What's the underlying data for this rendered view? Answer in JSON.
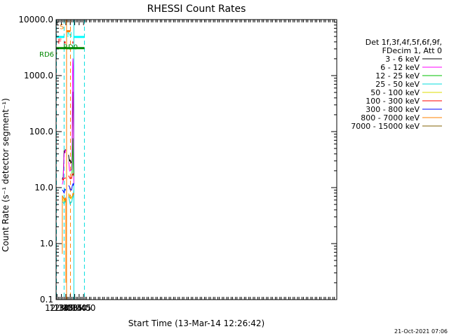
{
  "chart_data": {
    "type": "line",
    "title": "RHESSI Count Rates",
    "xlabel": "Start Time (13-Mar-14 12:26:42)",
    "ylabel": "Count Rate (s⁻¹ detector segment⁻¹)",
    "yscale": "log",
    "ylim": [
      0.1,
      10000
    ],
    "xlim_minutes": [
      12.45,
      28.3
    ],
    "x_tick_labels": [
      "12:30",
      "12:45",
      "13:00",
      "13:15",
      "13:30",
      "13:45",
      "14:00"
    ],
    "y_tick_labels": [
      "0.1",
      "1.0",
      "10.0",
      "100.0",
      "1000.0",
      "10000.0"
    ],
    "legend_header": [
      "Det 1f,3f,4f,5f,6f,9f,",
      "FDecim 1, Att 0"
    ],
    "legend_position": "right",
    "series": [
      {
        "name": "3 - 6 keV",
        "color": "#000000",
        "segments": [
          [
            [
              12.8,
              14
            ],
            [
              12.85,
              16
            ],
            [
              12.9,
              46
            ],
            [
              12.95,
              44
            ],
            [
              13.0,
              46
            ]
          ],
          [
            [
              13.15,
              38
            ],
            [
              13.2,
              30
            ],
            [
              13.25,
              30
            ],
            [
              13.32,
              29
            ],
            [
              13.35,
              33
            ],
            [
              13.38,
              200
            ],
            [
              13.4,
              540
            ],
            [
              13.42,
              420
            ],
            [
              13.45,
              17
            ]
          ]
        ]
      },
      {
        "name": "6 - 12 keV",
        "color": "#ff00ff",
        "segments": [
          [
            [
              12.8,
              12
            ],
            [
              12.85,
              13
            ],
            [
              12.9,
              40
            ],
            [
              12.95,
              44
            ],
            [
              13.0,
              47
            ]
          ],
          [
            [
              13.15,
              30
            ],
            [
              13.2,
              21
            ],
            [
              13.25,
              20
            ],
            [
              13.32,
              22
            ],
            [
              13.35,
              30
            ],
            [
              13.38,
              1200
            ],
            [
              13.4,
              2100
            ],
            [
              13.42,
              1500
            ],
            [
              13.45,
              12
            ]
          ]
        ]
      },
      {
        "name": "12 - 25 keV",
        "color": "#00c000",
        "segments": [
          [
            [
              13.35,
              16
            ],
            [
              13.38,
              50
            ],
            [
              13.4,
              80
            ],
            [
              13.42,
              30
            ],
            [
              13.45,
              16
            ]
          ]
        ]
      },
      {
        "name": "25 - 50 keV",
        "color": "#00dddd",
        "segments": [
          [
            [
              12.8,
              6
            ],
            [
              12.9,
              5
            ],
            [
              12.95,
              5.5
            ],
            [
              13.0,
              6
            ]
          ],
          [
            [
              13.15,
              7
            ],
            [
              13.25,
              5
            ],
            [
              13.32,
              5.5
            ],
            [
              13.4,
              7
            ],
            [
              13.45,
              9
            ]
          ]
        ]
      },
      {
        "name": "50 - 100 keV",
        "color": "#dddd00",
        "segments": [
          [
            [
              12.8,
              6.5
            ],
            [
              12.9,
              5.8
            ],
            [
              13.0,
              6.5
            ]
          ],
          [
            [
              13.15,
              7.5
            ],
            [
              13.3,
              6
            ],
            [
              13.45,
              8
            ]
          ]
        ]
      },
      {
        "name": "100 - 300 keV",
        "color": "#ff0000",
        "segments": [
          [
            [
              12.8,
              14
            ],
            [
              12.9,
              15
            ],
            [
              13.0,
              15
            ]
          ],
          [
            [
              13.15,
              17
            ],
            [
              13.25,
              14
            ],
            [
              13.32,
              15
            ],
            [
              13.4,
              18
            ],
            [
              13.45,
              18
            ]
          ]
        ]
      },
      {
        "name": "300 - 800 keV",
        "color": "#0000ff",
        "segments": [
          [
            [
              12.8,
              9
            ],
            [
              12.9,
              8.5
            ],
            [
              13.0,
              9
            ]
          ],
          [
            [
              13.15,
              11
            ],
            [
              13.25,
              9
            ],
            [
              13.32,
              9.5
            ],
            [
              13.4,
              11
            ],
            [
              13.45,
              12
            ]
          ]
        ]
      },
      {
        "name": "800 - 7000 keV",
        "color": "#ff8000",
        "segments": [
          [
            [
              12.8,
              0.7
            ],
            [
              12.8,
              7
            ],
            [
              12.9,
              6
            ],
            [
              12.95,
              6
            ],
            [
              13.0,
              6.5
            ],
            [
              13.0,
              0.2
            ]
          ],
          [
            [
              13.15,
              8
            ],
            [
              13.25,
              6.5
            ],
            [
              13.32,
              6.5
            ],
            [
              13.4,
              8
            ],
            [
              13.45,
              8
            ]
          ]
        ]
      },
      {
        "name": "7000 - 15000 keV",
        "color": "#806000",
        "segments": []
      }
    ],
    "vertical_lines": [
      {
        "x": 12.47,
        "color": "#00dddd",
        "style": "dashed"
      },
      {
        "x": 12.9,
        "color": "#00dddd",
        "style": "dashed"
      },
      {
        "x": 13.04,
        "color": "#ff8000",
        "style": "solid"
      },
      {
        "x": 13.26,
        "color": "#ff8000",
        "style": "dashed"
      },
      {
        "x": 13.45,
        "color": "#00dddd",
        "style": "solid"
      },
      {
        "x": 14.05,
        "color": "#00dddd",
        "style": "dashed"
      }
    ],
    "flag_bars": [
      {
        "label": "N",
        "color": "#00ffff",
        "x0": 12.45,
        "x1": 12.9,
        "y": 4900
      },
      {
        "label": "",
        "color": "#00ffff",
        "x0": 13.45,
        "x1": 14.05,
        "y": 4900
      },
      {
        "label": "S",
        "color": "#ff8000",
        "x0": 13.04,
        "x1": 13.26,
        "y": 6200
      },
      {
        "label": "F",
        "color": "#ff0000",
        "x0": 12.9,
        "x1": 12.98,
        "y": 3900
      },
      {
        "label": "",
        "color": "#ff0000",
        "x0": 13.37,
        "x1": 13.42,
        "y": 3900
      },
      {
        "label": "RD0",
        "color": "#008800",
        "x0": 12.45,
        "x1": 14.05,
        "y": 3100
      },
      {
        "label": "RD6",
        "color": "#008800",
        "x0": 12.45,
        "x1": 12.5,
        "y": 2500
      }
    ]
  },
  "footer": {
    "timestamp": "21-Oct-2021 07:06"
  }
}
